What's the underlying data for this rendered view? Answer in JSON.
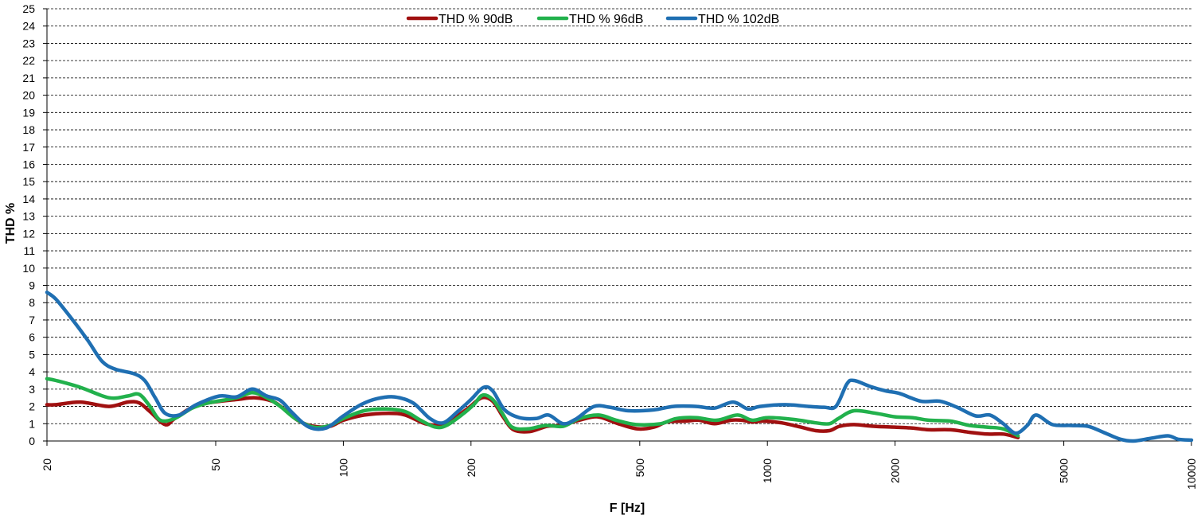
{
  "chart_data": {
    "type": "line",
    "xlabel": "F [Hz]",
    "ylabel": "THD %",
    "xscale": "log",
    "xlim": [
      20,
      10000
    ],
    "ylim": [
      0,
      25
    ],
    "grid": true,
    "legend": "top-center",
    "x_ticks": [
      20,
      50,
      100,
      200,
      500,
      1000,
      2000,
      5000,
      10000
    ],
    "x_tick_labels": [
      "20",
      "50",
      "100",
      "200",
      "500",
      "1000",
      "2000",
      "5000",
      "10000"
    ],
    "y_ticks": [
      0,
      1,
      2,
      3,
      4,
      5,
      6,
      7,
      8,
      9,
      10,
      11,
      12,
      13,
      14,
      15,
      16,
      17,
      18,
      19,
      20,
      21,
      22,
      23,
      24,
      25
    ],
    "y_tick_labels": [
      "0",
      "1",
      "2",
      "3",
      "4",
      "5",
      "6",
      "7",
      "8",
      "9",
      "10",
      "11",
      "12",
      "13",
      "14",
      "15",
      "16",
      "17",
      "18",
      "19",
      "20",
      "21",
      "22",
      "23",
      "24",
      "25"
    ],
    "series": [
      {
        "name": "THD % 90dB",
        "color": "#a01010",
        "points": [
          [
            20,
            2.1
          ],
          [
            21,
            2.1
          ],
          [
            24,
            2.25
          ],
          [
            28,
            2.0
          ],
          [
            31,
            2.25
          ],
          [
            33,
            2.2
          ],
          [
            35,
            1.7
          ],
          [
            38,
            0.95
          ],
          [
            40,
            1.3
          ],
          [
            44,
            1.95
          ],
          [
            48,
            2.2
          ],
          [
            56,
            2.4
          ],
          [
            62,
            2.5
          ],
          [
            68,
            2.3
          ],
          [
            72,
            1.9
          ],
          [
            78,
            1.2
          ],
          [
            85,
            0.85
          ],
          [
            93,
            0.85
          ],
          [
            100,
            1.2
          ],
          [
            112,
            1.5
          ],
          [
            128,
            1.6
          ],
          [
            140,
            1.5
          ],
          [
            156,
            1.0
          ],
          [
            170,
            0.95
          ],
          [
            182,
            1.3
          ],
          [
            197,
            1.9
          ],
          [
            212,
            2.5
          ],
          [
            225,
            2.3
          ],
          [
            238,
            1.4
          ],
          [
            252,
            0.65
          ],
          [
            275,
            0.55
          ],
          [
            302,
            0.85
          ],
          [
            325,
            0.9
          ],
          [
            360,
            1.2
          ],
          [
            398,
            1.4
          ],
          [
            445,
            1.0
          ],
          [
            495,
            0.7
          ],
          [
            540,
            0.8
          ],
          [
            580,
            1.1
          ],
          [
            640,
            1.15
          ],
          [
            690,
            1.2
          ],
          [
            750,
            1.0
          ],
          [
            820,
            1.2
          ],
          [
            870,
            1.2
          ],
          [
            920,
            1.1
          ],
          [
            980,
            1.15
          ],
          [
            1080,
            1.05
          ],
          [
            1200,
            0.8
          ],
          [
            1300,
            0.6
          ],
          [
            1400,
            0.6
          ],
          [
            1480,
            0.85
          ],
          [
            1600,
            0.95
          ],
          [
            1780,
            0.85
          ],
          [
            2000,
            0.8
          ],
          [
            2200,
            0.75
          ],
          [
            2400,
            0.65
          ],
          [
            2700,
            0.65
          ],
          [
            3000,
            0.5
          ],
          [
            3300,
            0.4
          ],
          [
            3600,
            0.4
          ],
          [
            3900,
            0.2
          ]
        ]
      },
      {
        "name": "THD % 96dB",
        "color": "#22b14c",
        "points": [
          [
            20,
            3.6
          ],
          [
            21,
            3.5
          ],
          [
            24,
            3.1
          ],
          [
            28,
            2.5
          ],
          [
            31,
            2.6
          ],
          [
            33,
            2.7
          ],
          [
            35,
            2.0
          ],
          [
            37,
            1.2
          ],
          [
            40,
            1.3
          ],
          [
            44,
            1.9
          ],
          [
            48,
            2.2
          ],
          [
            56,
            2.5
          ],
          [
            61,
            2.8
          ],
          [
            66,
            2.5
          ],
          [
            71,
            2.0
          ],
          [
            77,
            1.3
          ],
          [
            85,
            0.8
          ],
          [
            93,
            0.9
          ],
          [
            100,
            1.3
          ],
          [
            112,
            1.75
          ],
          [
            126,
            1.85
          ],
          [
            140,
            1.7
          ],
          [
            152,
            1.2
          ],
          [
            165,
            0.8
          ],
          [
            175,
            0.9
          ],
          [
            190,
            1.5
          ],
          [
            203,
            2.1
          ],
          [
            213,
            2.65
          ],
          [
            225,
            2.4
          ],
          [
            237,
            1.6
          ],
          [
            250,
            0.8
          ],
          [
            272,
            0.7
          ],
          [
            300,
            0.9
          ],
          [
            330,
            0.85
          ],
          [
            360,
            1.3
          ],
          [
            400,
            1.5
          ],
          [
            440,
            1.2
          ],
          [
            490,
            0.95
          ],
          [
            560,
            1.0
          ],
          [
            610,
            1.3
          ],
          [
            680,
            1.35
          ],
          [
            760,
            1.2
          ],
          [
            850,
            1.5
          ],
          [
            920,
            1.2
          ],
          [
            1000,
            1.35
          ],
          [
            1150,
            1.25
          ],
          [
            1300,
            1.05
          ],
          [
            1400,
            1.0
          ],
          [
            1470,
            1.3
          ],
          [
            1600,
            1.75
          ],
          [
            1800,
            1.6
          ],
          [
            2000,
            1.4
          ],
          [
            2200,
            1.35
          ],
          [
            2400,
            1.2
          ],
          [
            2700,
            1.15
          ],
          [
            3000,
            0.9
          ],
          [
            3300,
            0.8
          ],
          [
            3600,
            0.7
          ],
          [
            3900,
            0.3
          ]
        ]
      },
      {
        "name": "THD % 102dB",
        "color": "#1f6fb2",
        "points": [
          [
            20,
            8.6
          ],
          [
            21,
            8.2
          ],
          [
            23,
            7.0
          ],
          [
            25,
            5.8
          ],
          [
            27,
            4.6
          ],
          [
            29,
            4.15
          ],
          [
            32,
            3.9
          ],
          [
            34,
            3.5
          ],
          [
            36,
            2.5
          ],
          [
            38,
            1.6
          ],
          [
            41,
            1.5
          ],
          [
            45,
            2.1
          ],
          [
            51,
            2.6
          ],
          [
            56,
            2.55
          ],
          [
            61,
            3.0
          ],
          [
            66,
            2.6
          ],
          [
            71,
            2.35
          ],
          [
            76,
            1.6
          ],
          [
            83,
            0.8
          ],
          [
            91,
            0.75
          ],
          [
            100,
            1.45
          ],
          [
            110,
            2.1
          ],
          [
            120,
            2.45
          ],
          [
            132,
            2.55
          ],
          [
            146,
            2.2
          ],
          [
            160,
            1.3
          ],
          [
            172,
            1.05
          ],
          [
            186,
            1.7
          ],
          [
            200,
            2.4
          ],
          [
            214,
            3.1
          ],
          [
            225,
            2.9
          ],
          [
            240,
            1.8
          ],
          [
            260,
            1.35
          ],
          [
            285,
            1.3
          ],
          [
            305,
            1.5
          ],
          [
            330,
            1.0
          ],
          [
            355,
            1.3
          ],
          [
            390,
            2.0
          ],
          [
            425,
            1.95
          ],
          [
            470,
            1.75
          ],
          [
            540,
            1.8
          ],
          [
            600,
            2.0
          ],
          [
            680,
            2.0
          ],
          [
            750,
            1.9
          ],
          [
            830,
            2.25
          ],
          [
            900,
            1.85
          ],
          [
            960,
            2.0
          ],
          [
            1100,
            2.1
          ],
          [
            1250,
            2.0
          ],
          [
            1360,
            1.95
          ],
          [
            1450,
            2.0
          ],
          [
            1540,
            3.3
          ],
          [
            1600,
            3.5
          ],
          [
            1750,
            3.15
          ],
          [
            1900,
            2.9
          ],
          [
            2050,
            2.75
          ],
          [
            2300,
            2.3
          ],
          [
            2550,
            2.3
          ],
          [
            2800,
            1.95
          ],
          [
            3100,
            1.45
          ],
          [
            3350,
            1.5
          ],
          [
            3600,
            1.0
          ],
          [
            3850,
            0.45
          ],
          [
            4100,
            0.9
          ],
          [
            4300,
            1.5
          ],
          [
            4700,
            0.95
          ],
          [
            5200,
            0.9
          ],
          [
            5700,
            0.85
          ],
          [
            6200,
            0.5
          ],
          [
            6800,
            0.1
          ],
          [
            7300,
            0.0
          ],
          [
            8000,
            0.15
          ],
          [
            8800,
            0.3
          ],
          [
            9300,
            0.1
          ],
          [
            10000,
            0.05
          ]
        ]
      }
    ]
  }
}
